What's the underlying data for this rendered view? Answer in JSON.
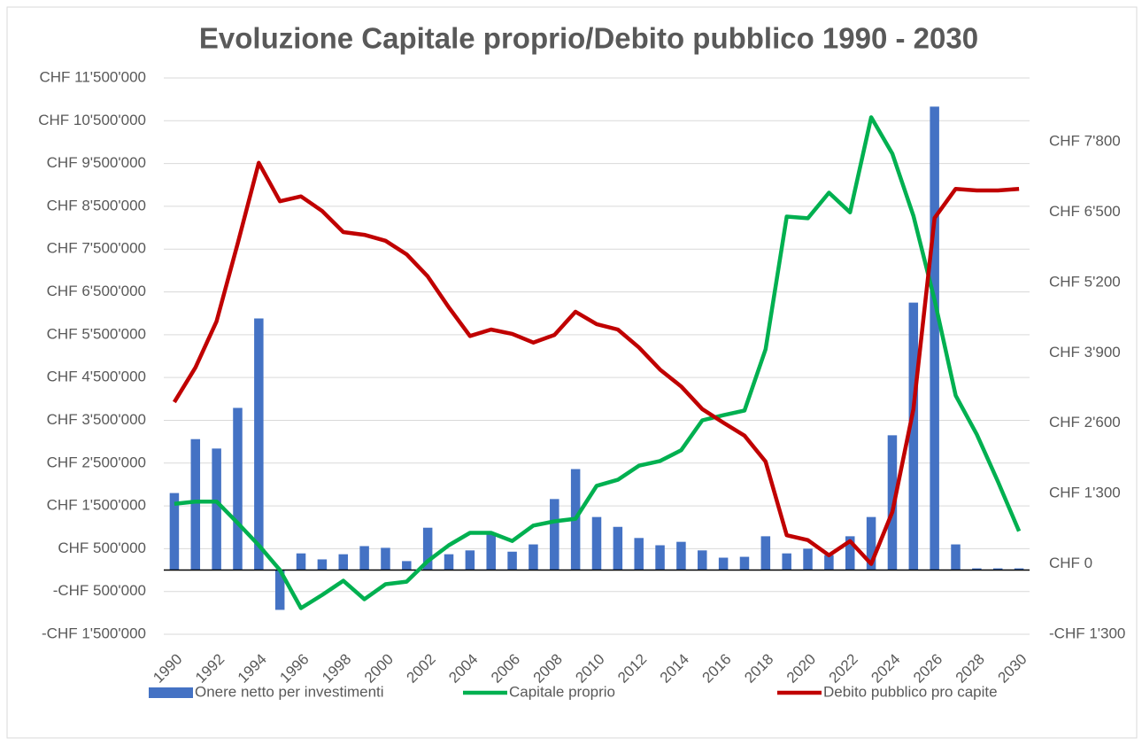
{
  "chart_data": {
    "type": "bar_line",
    "title": "Evoluzione Capitale proprio/Debito pubblico 1990 - 2030",
    "categories": [
      "1990",
      null,
      "1992",
      null,
      "1994",
      null,
      "1996",
      null,
      "1998",
      null,
      "2000",
      null,
      "2002",
      null,
      "2004",
      null,
      "2006",
      null,
      "2008",
      null,
      "2010",
      null,
      "2012",
      null,
      "2014",
      null,
      "2016",
      null,
      "2018",
      null,
      "2020",
      null,
      "2022",
      null,
      "2024",
      null,
      "2026",
      null,
      "2028",
      null,
      "2030"
    ],
    "series": [
      {
        "name": "Onere netto per investimenti",
        "type": "bar",
        "color": "#4472c4",
        "axis": "y",
        "values": [
          1800000,
          3060000,
          2840000,
          3790000,
          5880000,
          -930000,
          390000,
          250000,
          370000,
          560000,
          520000,
          210000,
          990000,
          370000,
          460000,
          850000,
          430000,
          600000,
          1660000,
          2360000,
          1240000,
          1010000,
          750000,
          580000,
          660000,
          460000,
          290000,
          310000,
          790000,
          390000,
          500000,
          350000,
          790000,
          1240000,
          3150000,
          6250000,
          10830000,
          600000,
          40000,
          40000,
          40000
        ]
      },
      {
        "name": "Capitale proprio",
        "type": "line",
        "color": "#00b050",
        "axis": "y",
        "values": [
          1550000,
          1600000,
          1600000,
          1100000,
          580000,
          0,
          -890000,
          -580000,
          -250000,
          -680000,
          -330000,
          -270000,
          210000,
          580000,
          870000,
          870000,
          680000,
          1040000,
          1140000,
          1200000,
          1970000,
          2110000,
          2440000,
          2550000,
          2800000,
          3500000,
          3620000,
          3730000,
          5160000,
          8260000,
          8220000,
          8820000,
          8360000,
          10580000,
          9730000,
          8280000,
          6310000,
          4080000,
          3170000,
          2070000,
          910000
        ]
      },
      {
        "name": "Debito pubblico pro capite",
        "type": "line",
        "color": "#c00000",
        "axis": "y2",
        "values": [
          2990,
          3630,
          4480,
          5920,
          7410,
          6700,
          6790,
          6520,
          6130,
          6080,
          5970,
          5720,
          5310,
          4740,
          4210,
          4330,
          4250,
          4090,
          4230,
          4660,
          4430,
          4330,
          4000,
          3590,
          3280,
          2860,
          2610,
          2370,
          1890,
          530,
          440,
          160,
          420,
          0,
          960,
          2860,
          6390,
          6930,
          6900,
          6900,
          6930
        ]
      }
    ],
    "ylim": [
      -1500000,
      11500000
    ],
    "yticks": [
      {
        "value": -1500000,
        "label": "-CHF 1'500'000"
      },
      {
        "value": -500000,
        "label": "-CHF 500'000"
      },
      {
        "value": 500000,
        "label": "CHF 500'000"
      },
      {
        "value": 1500000,
        "label": "CHF 1'500'000"
      },
      {
        "value": 2500000,
        "label": "CHF 2'500'000"
      },
      {
        "value": 3500000,
        "label": "CHF 3'500'000"
      },
      {
        "value": 4500000,
        "label": "CHF 4'500'000"
      },
      {
        "value": 5500000,
        "label": "CHF 5'500'000"
      },
      {
        "value": 6500000,
        "label": "CHF 6'500'000"
      },
      {
        "value": 7500000,
        "label": "CHF 7'500'000"
      },
      {
        "value": 8500000,
        "label": "CHF 8'500'000"
      },
      {
        "value": 9500000,
        "label": "CHF 9'500'000"
      },
      {
        "value": 10500000,
        "label": "CHF 10'500'000"
      },
      {
        "value": 11500000,
        "label": "CHF 11'500'000"
      }
    ],
    "y2lim": [
      -1300,
      7800
    ],
    "y2ticks": [
      {
        "value": -1300,
        "label": "-CHF 1'300"
      },
      {
        "value": 0,
        "label": "CHF 0"
      },
      {
        "value": 1300,
        "label": "CHF 1'300"
      },
      {
        "value": 2600,
        "label": "CHF 2'600"
      },
      {
        "value": 3900,
        "label": "CHF 3'900"
      },
      {
        "value": 5200,
        "label": "CHF 5'200"
      },
      {
        "value": 6500,
        "label": "CHF 6'500"
      },
      {
        "value": 7800,
        "label": "CHF 7'800"
      }
    ],
    "grid": true,
    "legend": "bottom"
  }
}
